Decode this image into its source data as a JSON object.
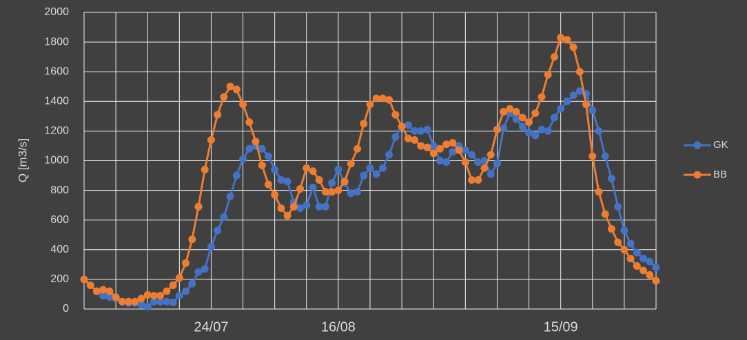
{
  "chart_data": {
    "type": "line",
    "y_label": "Q [m3/s]",
    "categories": [
      null,
      null,
      null,
      null,
      null,
      null,
      null,
      null,
      null,
      null,
      null,
      null,
      null,
      null,
      null,
      null,
      null,
      null,
      null,
      null,
      "24/07",
      null,
      null,
      null,
      null,
      null,
      null,
      null,
      null,
      null,
      null,
      null,
      null,
      null,
      null,
      null,
      null,
      null,
      null,
      null,
      "16/08",
      null,
      null,
      null,
      null,
      null,
      null,
      null,
      null,
      null,
      null,
      null,
      null,
      null,
      null,
      null,
      null,
      null,
      null,
      null,
      null,
      null,
      null,
      null,
      null,
      null,
      null,
      null,
      null,
      null,
      null,
      null,
      null,
      null,
      null,
      "15/09",
      null,
      null,
      null,
      null,
      null,
      null,
      null,
      null,
      null,
      null,
      null,
      null,
      null,
      null,
      null
    ],
    "series": [
      {
        "name": "GK",
        "color": "#4472c4",
        "values": [
          200,
          160,
          120,
          90,
          80,
          70,
          50,
          40,
          40,
          30,
          15,
          50,
          50,
          50,
          45,
          90,
          120,
          170,
          250,
          270,
          420,
          530,
          620,
          760,
          900,
          1010,
          1080,
          1100,
          1080,
          1030,
          940,
          870,
          860,
          720,
          680,
          700,
          820,
          690,
          690,
          850,
          940,
          850,
          780,
          790,
          900,
          950,
          910,
          950,
          1040,
          1160,
          1230,
          1240,
          1200,
          1200,
          1210,
          1100,
          1000,
          990,
          1060,
          1100,
          1070,
          1040,
          990,
          1000,
          910,
          980,
          1220,
          1320,
          1280,
          1230,
          1190,
          1170,
          1210,
          1200,
          1290,
          1350,
          1400,
          1440,
          1470,
          1450,
          1340,
          1200,
          1030,
          880,
          690,
          530,
          440,
          380,
          340,
          320,
          280
        ]
      },
      {
        "name": "BB",
        "color": "#ed7d31",
        "values": [
          200,
          160,
          120,
          130,
          120,
          80,
          50,
          50,
          50,
          70,
          95,
          90,
          90,
          120,
          160,
          210,
          310,
          470,
          690,
          940,
          1140,
          1310,
          1430,
          1500,
          1480,
          1380,
          1260,
          1130,
          970,
          840,
          770,
          680,
          630,
          690,
          810,
          950,
          930,
          870,
          790,
          790,
          800,
          860,
          980,
          1080,
          1250,
          1380,
          1420,
          1420,
          1410,
          1310,
          1230,
          1150,
          1140,
          1100,
          1090,
          1050,
          1080,
          1110,
          1120,
          1070,
          990,
          870,
          870,
          950,
          1040,
          1210,
          1330,
          1350,
          1330,
          1290,
          1260,
          1320,
          1430,
          1580,
          1700,
          1830,
          1815,
          1765,
          1600,
          1380,
          1030,
          790,
          640,
          540,
          450,
          400,
          340,
          290,
          260,
          230,
          190
        ]
      }
    ],
    "ylim": [
      0,
      2000
    ],
    "yticks": [
      0,
      200,
      400,
      600,
      800,
      1000,
      1200,
      1400,
      1600,
      1800,
      2000
    ],
    "grid": true,
    "legend": "right"
  }
}
